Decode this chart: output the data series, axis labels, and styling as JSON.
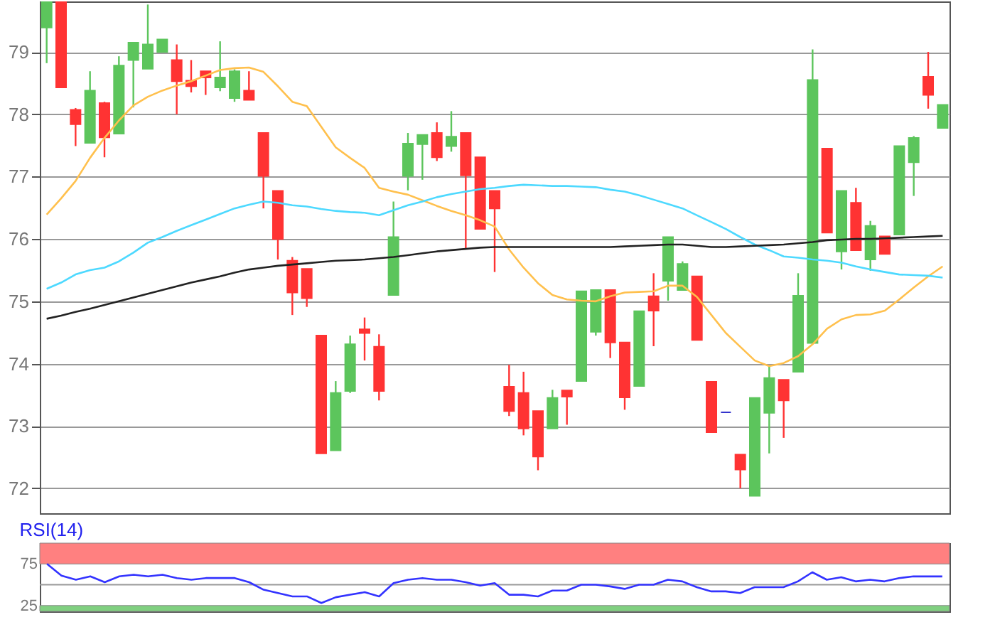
{
  "chart_data": [
    {
      "type": "candlestick",
      "categories": [
        null,
        null,
        null,
        null,
        null,
        null,
        null,
        null,
        null,
        null,
        null,
        null,
        null,
        null,
        null,
        null,
        null,
        null,
        null,
        null,
        null,
        null,
        null,
        null,
        null,
        null,
        null,
        null,
        null,
        null,
        null,
        null,
        null,
        null,
        null,
        null,
        null,
        null,
        null,
        null,
        null,
        null,
        null,
        null,
        null,
        null,
        null,
        null,
        null,
        null,
        null,
        null,
        null,
        null,
        null,
        null,
        null,
        null,
        null,
        null,
        null,
        null,
        null
      ],
      "ohlc": [
        [
          79.39,
          79.8,
          78.82,
          79.8
        ],
        [
          79.8,
          79.8,
          78.43,
          78.43
        ],
        [
          78.07,
          78.1,
          77.49,
          77.84
        ],
        [
          77.54,
          78.69,
          77.54,
          78.38
        ],
        [
          78.18,
          78.2,
          77.31,
          77.63
        ],
        [
          77.69,
          78.93,
          77.69,
          78.78
        ],
        [
          78.87,
          79.15,
          78.11,
          79.15
        ],
        [
          78.73,
          79.76,
          78.73,
          79.12
        ],
        [
          79.0,
          79.2,
          79.0,
          79.2
        ],
        [
          78.87,
          79.12,
          78.0,
          78.53
        ],
        [
          78.54,
          78.87,
          78.35,
          78.45
        ],
        [
          78.69,
          78.69,
          78.31,
          78.59
        ],
        [
          78.43,
          79.17,
          78.37,
          78.59
        ],
        [
          78.26,
          78.72,
          78.2,
          78.69
        ],
        [
          78.38,
          78.69,
          78.23,
          78.23
        ],
        [
          77.7,
          77.7,
          76.49,
          77.01
        ],
        [
          76.77,
          76.77,
          75.67,
          76.0
        ],
        [
          75.65,
          75.71,
          74.78,
          75.14
        ],
        [
          75.52,
          75.52,
          74.91,
          75.05
        ],
        [
          74.45,
          74.45,
          72.56,
          72.56
        ],
        [
          72.61,
          73.72,
          72.61,
          73.53
        ],
        [
          73.56,
          74.45,
          73.53,
          74.31
        ],
        [
          74.55,
          74.74,
          74.05,
          74.49
        ],
        [
          74.27,
          74.47,
          73.41,
          73.56
        ],
        [
          75.1,
          76.6,
          75.1,
          76.03
        ],
        [
          77.01,
          77.7,
          76.78,
          77.53
        ],
        [
          77.52,
          77.67,
          76.95,
          77.67
        ],
        [
          77.7,
          77.87,
          77.25,
          77.31
        ],
        [
          77.49,
          78.05,
          77.4,
          77.64
        ],
        [
          77.7,
          77.7,
          75.83,
          77.02
        ],
        [
          77.31,
          77.31,
          76.16,
          76.16
        ],
        [
          76.77,
          76.77,
          75.47,
          76.49
        ],
        [
          73.63,
          73.98,
          73.16,
          73.24
        ],
        [
          73.53,
          73.87,
          72.85,
          72.96
        ],
        [
          73.24,
          73.24,
          72.29,
          72.51
        ],
        [
          72.96,
          73.58,
          72.96,
          73.45
        ],
        [
          73.57,
          73.57,
          73.02,
          73.47
        ],
        [
          73.72,
          75.16,
          73.72,
          75.16
        ],
        [
          74.51,
          75.18,
          74.45,
          75.18
        ],
        [
          75.18,
          75.18,
          74.09,
          74.34
        ],
        [
          74.34,
          74.34,
          73.26,
          73.46
        ],
        [
          73.64,
          74.84,
          73.64,
          74.84
        ],
        [
          75.08,
          75.45,
          74.28,
          74.85
        ],
        [
          75.33,
          76.03,
          75.01,
          76.03
        ],
        [
          75.18,
          75.64,
          75.18,
          75.6
        ],
        [
          75.4,
          75.4,
          74.38,
          74.38
        ],
        [
          73.71,
          73.71,
          72.9,
          72.9
        ],
        [
          73.22,
          73.22,
          73.22,
          73.22
        ],
        [
          72.54,
          72.54,
          72.0,
          72.3
        ],
        [
          71.88,
          73.45,
          71.88,
          73.45
        ],
        [
          73.21,
          73.96,
          72.56,
          73.77
        ],
        [
          73.74,
          73.74,
          72.81,
          73.41
        ],
        [
          73.87,
          75.45,
          73.87,
          75.09
        ],
        [
          74.33,
          79.04,
          74.33,
          78.55
        ],
        [
          77.45,
          77.45,
          76.1,
          76.1
        ],
        [
          75.8,
          76.77,
          75.51,
          76.77
        ],
        [
          76.58,
          76.82,
          75.82,
          75.82
        ],
        [
          75.67,
          76.29,
          75.49,
          76.21
        ],
        [
          76.04,
          76.04,
          75.76,
          75.76
        ],
        [
          76.07,
          77.49,
          76.07,
          77.49
        ],
        [
          77.23,
          77.65,
          76.69,
          77.62
        ],
        [
          78.6,
          79.0,
          78.09,
          78.31
        ],
        [
          77.78,
          78.15,
          77.78,
          78.15
        ]
      ],
      "colors": [
        "#5cc55c",
        "#ff3333",
        "#ff3333",
        "#5cc55c",
        "#ff3333",
        "#5cc55c",
        "#5cc55c",
        "#5cc55c",
        "#5cc55c",
        "#ff3333",
        "#ff3333",
        "#ff3333",
        "#5cc55c",
        "#5cc55c",
        "#ff3333",
        "#ff3333",
        "#ff3333",
        "#ff3333",
        "#ff3333",
        "#ff3333",
        "#5cc55c",
        "#5cc55c",
        "#ff3333",
        "#ff3333",
        "#5cc55c",
        "#5cc55c",
        "#5cc55c",
        "#ff3333",
        "#5cc55c",
        "#ff3333",
        "#ff3333",
        "#ff3333",
        "#ff3333",
        "#ff3333",
        "#ff3333",
        "#5cc55c",
        "#ff3333",
        "#5cc55c",
        "#5cc55c",
        "#ff3333",
        "#ff3333",
        "#5cc55c",
        "#ff3333",
        "#5cc55c",
        "#5cc55c",
        "#ff3333",
        "#ff3333",
        "#3333cc",
        "#ff3333",
        "#5cc55c",
        "#5cc55c",
        "#ff3333",
        "#5cc55c",
        "#5cc55c",
        "#ff3333",
        "#5cc55c",
        "#ff3333",
        "#5cc55c",
        "#ff3333",
        "#5cc55c",
        "#5cc55c",
        "#ff3333",
        "#5cc55c"
      ],
      "series": [
        {
          "type": "line",
          "color": "#ffc04d",
          "values": [
            76.39,
            76.65,
            76.93,
            77.3,
            77.62,
            77.9,
            78.14,
            78.28,
            78.38,
            78.46,
            78.53,
            78.62,
            78.71,
            78.74,
            78.75,
            78.68,
            78.45,
            78.2,
            78.13,
            77.8,
            77.47,
            77.3,
            77.14,
            76.82,
            76.76,
            76.71,
            76.62,
            76.53,
            76.45,
            76.38,
            76.3,
            76.2,
            75.83,
            75.54,
            75.29,
            75.1,
            75.03,
            75.01,
            75.0,
            75.08,
            75.14,
            75.15,
            75.16,
            75.25,
            75.25,
            75.07,
            74.78,
            74.49,
            74.27,
            74.05,
            73.96,
            74.01,
            74.12,
            74.31,
            74.56,
            74.71,
            74.78,
            74.79,
            74.85,
            75.03,
            75.22,
            75.4,
            75.56
          ]
        },
        {
          "type": "line",
          "color": "#4dd9ff",
          "values": [
            75.2,
            75.3,
            75.43,
            75.5,
            75.54,
            75.64,
            75.78,
            75.94,
            76.03,
            76.13,
            76.22,
            76.31,
            76.4,
            76.49,
            76.55,
            76.6,
            76.58,
            76.54,
            76.52,
            76.48,
            76.45,
            76.43,
            76.42,
            76.38,
            76.46,
            76.54,
            76.6,
            76.67,
            76.72,
            76.76,
            76.8,
            76.82,
            76.85,
            76.87,
            76.86,
            76.85,
            76.85,
            76.84,
            76.83,
            76.79,
            76.76,
            76.7,
            76.63,
            76.56,
            76.49,
            76.38,
            76.27,
            76.16,
            76.03,
            75.91,
            75.82,
            75.72,
            75.7,
            75.67,
            75.65,
            75.62,
            75.56,
            75.51,
            75.47,
            75.43,
            75.42,
            75.41,
            75.38
          ]
        },
        {
          "type": "line",
          "color": "#222222",
          "values": [
            74.72,
            74.77,
            74.83,
            74.88,
            74.94,
            75.0,
            75.06,
            75.12,
            75.18,
            75.24,
            75.3,
            75.35,
            75.4,
            75.46,
            75.51,
            75.54,
            75.57,
            75.59,
            75.61,
            75.63,
            75.65,
            75.66,
            75.67,
            75.69,
            75.71,
            75.74,
            75.77,
            75.8,
            75.82,
            75.84,
            75.86,
            75.87,
            75.87,
            75.87,
            75.87,
            75.87,
            75.87,
            75.87,
            75.87,
            75.87,
            75.88,
            75.89,
            75.9,
            75.91,
            75.91,
            75.89,
            75.87,
            75.87,
            75.88,
            75.89,
            75.9,
            75.91,
            75.93,
            75.95,
            75.98,
            75.99,
            76.0,
            76.0,
            76.01,
            76.02,
            76.03,
            76.04,
            76.05
          ]
        }
      ],
      "ylim": [
        71.6,
        79.81
      ],
      "yticks": [
        72,
        73,
        74,
        75,
        76,
        77,
        78,
        79
      ],
      "grid": "y",
      "tick_labels": "y"
    },
    {
      "type": "line",
      "title": "RSI(14)",
      "categories": [
        null,
        null,
        null,
        null,
        null,
        null,
        null,
        null,
        null,
        null,
        null,
        null,
        null,
        null,
        null,
        null,
        null,
        null,
        null,
        null,
        null,
        null,
        null,
        null,
        null,
        null,
        null,
        null,
        null,
        null,
        null,
        null,
        null,
        null,
        null,
        null,
        null,
        null,
        null,
        null,
        null,
        null,
        null,
        null,
        null,
        null,
        null,
        null,
        null,
        null,
        null,
        null,
        null,
        null,
        null,
        null,
        null,
        null,
        null,
        null,
        null,
        null,
        null
      ],
      "series": [
        {
          "color": "#3333ff",
          "values": [
            75,
            61,
            56,
            60,
            53,
            60,
            62,
            60,
            62,
            58,
            56,
            58,
            58,
            58,
            53,
            44,
            40,
            36,
            36,
            28,
            35,
            38,
            41,
            36,
            52,
            56,
            58,
            56,
            56,
            53,
            49,
            52,
            38,
            38,
            36,
            43,
            43,
            50,
            50,
            48,
            45,
            50,
            50,
            56,
            54,
            47,
            42,
            42,
            40,
            47,
            47,
            47,
            54,
            65,
            56,
            59,
            54,
            56,
            54,
            58,
            60,
            60,
            60
          ]
        }
      ],
      "ylim": [
        18,
        100
      ],
      "yticks": [
        25,
        75
      ],
      "bands": [
        {
          "axis": "y",
          "from": 75,
          "to": 100,
          "color": "#ff8080"
        },
        {
          "axis": "y",
          "from": 18,
          "to": 25,
          "color": "#80d080"
        }
      ],
      "ref_lines": [
        {
          "axis": "y",
          "value": 50,
          "color": "#999999"
        }
      ],
      "tick_labels": "y"
    }
  ]
}
